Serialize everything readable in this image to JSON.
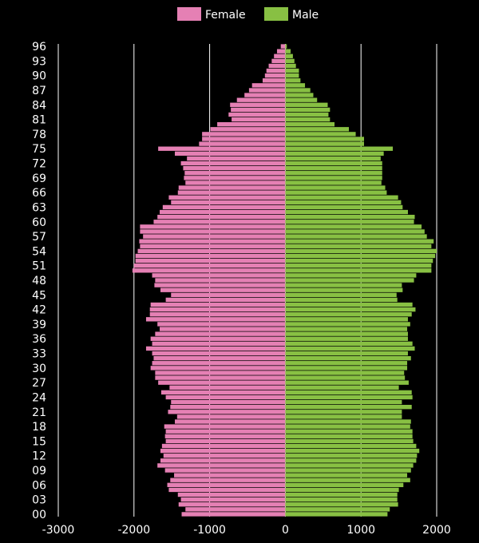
{
  "chart_data": {
    "type": "bar",
    "orientation": "horizontal",
    "layout": "population-pyramid",
    "categories": [
      "00",
      "01",
      "02",
      "03",
      "04",
      "05",
      "06",
      "07",
      "08",
      "09",
      "10",
      "11",
      "12",
      "13",
      "14",
      "15",
      "16",
      "17",
      "18",
      "19",
      "20",
      "21",
      "22",
      "23",
      "24",
      "25",
      "26",
      "27",
      "28",
      "29",
      "30",
      "31",
      "32",
      "33",
      "34",
      "35",
      "36",
      "37",
      "38",
      "39",
      "40",
      "41",
      "42",
      "43",
      "44",
      "45",
      "46",
      "47",
      "48",
      "49",
      "50",
      "51",
      "52",
      "53",
      "54",
      "55",
      "56",
      "57",
      "58",
      "59",
      "60",
      "61",
      "62",
      "63",
      "64",
      "65",
      "66",
      "67",
      "68",
      "69",
      "70",
      "71",
      "72",
      "73",
      "74",
      "75",
      "76",
      "77",
      "78",
      "79",
      "80",
      "81",
      "82",
      "83",
      "84",
      "85",
      "86",
      "87",
      "88",
      "89",
      "90",
      "91",
      "92",
      "93",
      "94",
      "95",
      "96"
    ],
    "category_tick_labels": [
      "00",
      "03",
      "06",
      "09",
      "12",
      "15",
      "18",
      "21",
      "24",
      "27",
      "30",
      "33",
      "36",
      "39",
      "42",
      "45",
      "48",
      "51",
      "54",
      "57",
      "60",
      "63",
      "66",
      "69",
      "72",
      "75",
      "78",
      "81",
      "84",
      "87",
      "90",
      "93",
      "96"
    ],
    "series": [
      {
        "name": "Female",
        "color": "#e580b4",
        "values": [
          -1370,
          -1320,
          -1410,
          -1380,
          -1420,
          -1540,
          -1560,
          -1520,
          -1470,
          -1590,
          -1690,
          -1650,
          -1610,
          -1650,
          -1630,
          -1580,
          -1590,
          -1580,
          -1600,
          -1460,
          -1430,
          -1550,
          -1520,
          -1510,
          -1580,
          -1640,
          -1530,
          -1680,
          -1720,
          -1720,
          -1780,
          -1760,
          -1740,
          -1760,
          -1840,
          -1760,
          -1780,
          -1720,
          -1660,
          -1690,
          -1840,
          -1790,
          -1790,
          -1780,
          -1580,
          -1510,
          -1650,
          -1730,
          -1720,
          -1760,
          -2020,
          -2000,
          -1980,
          -1980,
          -1950,
          -1920,
          -1930,
          -1880,
          -1920,
          -1920,
          -1740,
          -1690,
          -1660,
          -1620,
          -1510,
          -1540,
          -1420,
          -1410,
          -1320,
          -1340,
          -1330,
          -1350,
          -1380,
          -1300,
          -1460,
          -1680,
          -1140,
          -1100,
          -1100,
          -990,
          -900,
          -710,
          -750,
          -720,
          -730,
          -640,
          -540,
          -480,
          -440,
          -300,
          -270,
          -250,
          -220,
          -180,
          -150,
          -110,
          -60
        ]
      },
      {
        "name": "Male",
        "color": "#88c043",
        "values": [
          1350,
          1380,
          1490,
          1480,
          1480,
          1500,
          1560,
          1650,
          1610,
          1660,
          1690,
          1730,
          1740,
          1770,
          1730,
          1690,
          1680,
          1680,
          1650,
          1660,
          1540,
          1540,
          1670,
          1540,
          1680,
          1670,
          1500,
          1630,
          1580,
          1570,
          1610,
          1610,
          1660,
          1620,
          1710,
          1680,
          1620,
          1620,
          1610,
          1650,
          1620,
          1670,
          1720,
          1680,
          1480,
          1470,
          1550,
          1540,
          1700,
          1730,
          1930,
          1930,
          1950,
          1980,
          2000,
          1930,
          1960,
          1870,
          1840,
          1800,
          1700,
          1710,
          1620,
          1550,
          1530,
          1490,
          1340,
          1320,
          1270,
          1280,
          1280,
          1280,
          1280,
          1260,
          1300,
          1420,
          1040,
          1040,
          930,
          840,
          650,
          590,
          570,
          590,
          560,
          420,
          370,
          330,
          260,
          200,
          180,
          180,
          140,
          120,
          100,
          70,
          20
        ]
      }
    ],
    "xlim": [
      -3000,
      2000
    ],
    "xticks": [
      -3000,
      -2000,
      -1000,
      0,
      1000,
      2000
    ],
    "xtick_labels": [
      "-3000",
      "-2000",
      "-1000",
      "0",
      "1000",
      "2000"
    ],
    "grid": "vertical",
    "legend_position": "top-center"
  }
}
